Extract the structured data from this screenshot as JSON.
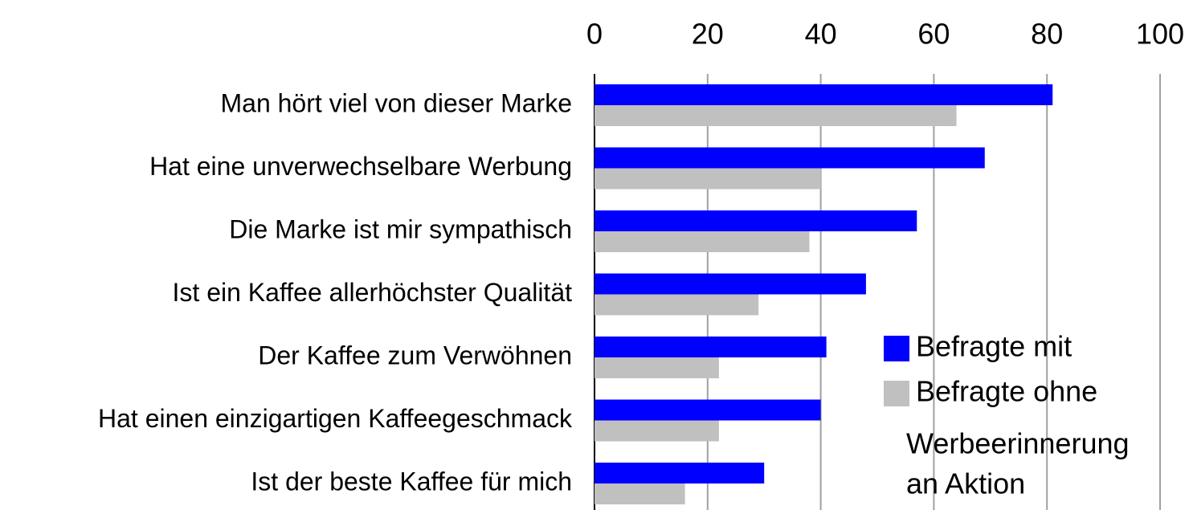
{
  "chart_data": {
    "type": "bar",
    "orientation": "horizontal",
    "categories": [
      "Man hört viel von dieser Marke",
      "Hat eine unverwechselbare Werbung",
      "Die Marke ist mir sympathisch",
      "Ist ein Kaffee allerhöchster Qualität",
      "Der Kaffee zum Verwöhnen",
      "Hat einen einzigartigen Kaffeegeschmack",
      "Ist der beste Kaffee für mich"
    ],
    "series": [
      {
        "name": "Befragte mit",
        "color": "#0000ff",
        "values": [
          81,
          69,
          57,
          48,
          41,
          40,
          30
        ]
      },
      {
        "name": "Befragte ohne",
        "color": "#c0c0c0",
        "values": [
          64,
          40,
          38,
          29,
          22,
          22,
          16
        ]
      }
    ],
    "xlim": [
      0,
      100
    ],
    "xticks": [
      0,
      20,
      40,
      60,
      80,
      100
    ],
    "grid": true,
    "legend_position": "lower right",
    "annotation": [
      "Werbeerinnerung",
      "an Aktion"
    ]
  }
}
